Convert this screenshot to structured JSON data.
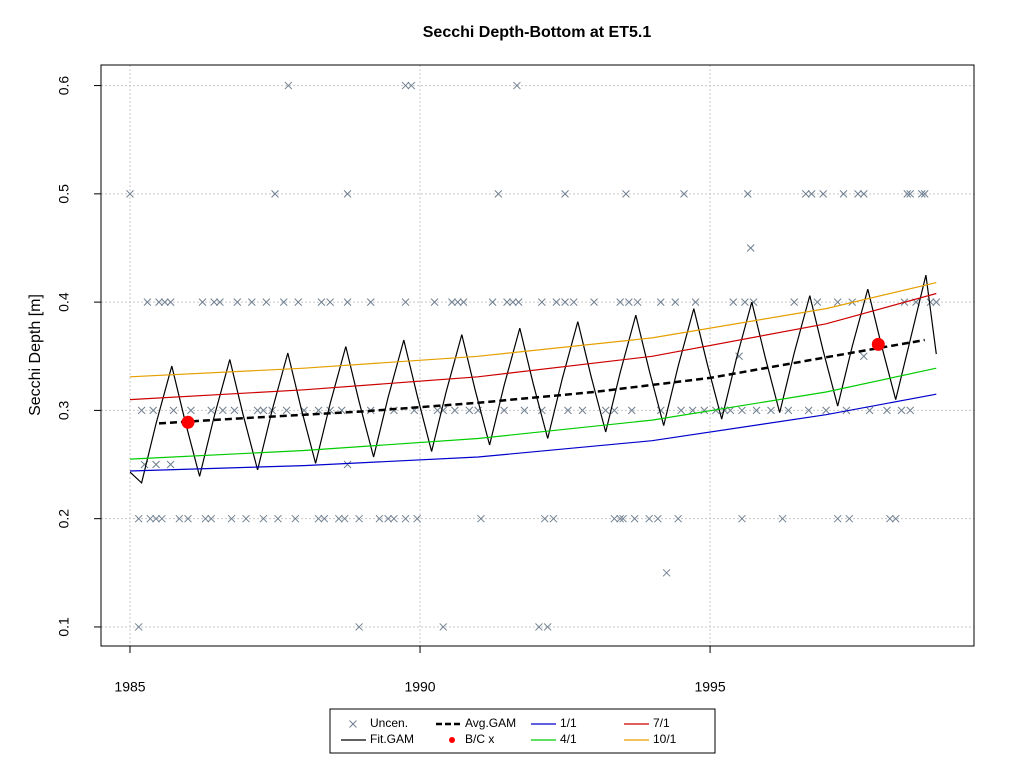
{
  "chart_data": {
    "type": "line",
    "title": "Secchi Depth-Bottom at ET5.1",
    "ylabel": "Secchi Depth [m]",
    "xlim": [
      1984.5,
      1999.55
    ],
    "ylim": [
      0.0824,
      0.619
    ],
    "xticks": [
      1985,
      1990,
      1995
    ],
    "yticks": [
      0.1,
      0.2,
      0.3,
      0.4,
      0.5,
      0.6
    ],
    "grid": true,
    "legend": "bottom",
    "series": [
      {
        "name": "Uncen.",
        "kind": "scatter",
        "color": "#708090",
        "x": [
          1987.73,
          1989.75,
          1989.85,
          1991.67,
          1985.0,
          1987.5,
          1988.75,
          1991.35,
          1992.5,
          1993.55,
          1994.55,
          1995.65,
          1996.65,
          1996.75,
          1996.95,
          1997.3,
          1997.55,
          1997.65,
          1998.4,
          1998.45,
          1998.65,
          1998.7,
          1995.7,
          1985.3,
          1985.5,
          1985.6,
          1985.7,
          1986.25,
          1986.45,
          1986.55,
          1986.85,
          1987.1,
          1987.35,
          1987.65,
          1987.9,
          1988.3,
          1988.45,
          1988.75,
          1989.15,
          1989.75,
          1990.25,
          1990.55,
          1990.65,
          1990.75,
          1991.25,
          1991.5,
          1991.6,
          1991.7,
          1992.1,
          1992.35,
          1992.5,
          1992.65,
          1993.0,
          1993.45,
          1993.6,
          1993.75,
          1994.15,
          1994.4,
          1994.75,
          1995.4,
          1995.6,
          1995.75,
          1996.45,
          1996.85,
          1997.2,
          1997.45,
          1998.35,
          1998.55,
          1998.8,
          1998.9,
          1995.5,
          1997.65,
          1985.2,
          1985.4,
          1985.75,
          1986.05,
          1986.4,
          1986.6,
          1986.8,
          1987.2,
          1987.3,
          1987.45,
          1987.7,
          1988.0,
          1988.25,
          1988.45,
          1988.65,
          1989.15,
          1989.55,
          1989.9,
          1990.3,
          1990.4,
          1990.6,
          1990.85,
          1991.0,
          1991.45,
          1991.8,
          1992.1,
          1992.55,
          1992.8,
          1993.2,
          1993.35,
          1993.65,
          1994.15,
          1994.5,
          1994.7,
          1994.9,
          1995.1,
          1995.25,
          1995.35,
          1995.55,
          1995.8,
          1996.05,
          1996.35,
          1996.7,
          1997.0,
          1997.35,
          1997.75,
          1998.05,
          1998.3,
          1998.45,
          1985.25,
          1985.45,
          1985.7,
          1988.75,
          1985.15,
          1985.35,
          1985.45,
          1985.55,
          1985.85,
          1986.0,
          1986.3,
          1986.4,
          1986.75,
          1987.0,
          1987.3,
          1987.55,
          1987.85,
          1988.25,
          1988.35,
          1988.6,
          1988.7,
          1988.95,
          1989.3,
          1989.45,
          1989.55,
          1989.75,
          1989.95,
          1991.05,
          1992.15,
          1992.3,
          1993.35,
          1993.45,
          1993.5,
          1993.7,
          1993.95,
          1994.1,
          1994.45,
          1995.55,
          1996.25,
          1997.2,
          1997.4,
          1998.1,
          1998.2,
          1994.25,
          1985.15,
          1988.95,
          1990.4,
          1992.05,
          1992.2
        ],
        "values": [
          0.6,
          0.6,
          0.6,
          0.6,
          0.5,
          0.5,
          0.5,
          0.5,
          0.5,
          0.5,
          0.5,
          0.5,
          0.5,
          0.5,
          0.5,
          0.5,
          0.5,
          0.5,
          0.5,
          0.5,
          0.5,
          0.5,
          0.45,
          0.4,
          0.4,
          0.4,
          0.4,
          0.4,
          0.4,
          0.4,
          0.4,
          0.4,
          0.4,
          0.4,
          0.4,
          0.4,
          0.4,
          0.4,
          0.4,
          0.4,
          0.4,
          0.4,
          0.4,
          0.4,
          0.4,
          0.4,
          0.4,
          0.4,
          0.4,
          0.4,
          0.4,
          0.4,
          0.4,
          0.4,
          0.4,
          0.4,
          0.4,
          0.4,
          0.4,
          0.4,
          0.4,
          0.4,
          0.4,
          0.4,
          0.4,
          0.4,
          0.4,
          0.4,
          0.4,
          0.4,
          0.35,
          0.35,
          0.3,
          0.3,
          0.3,
          0.3,
          0.3,
          0.3,
          0.3,
          0.3,
          0.3,
          0.3,
          0.3,
          0.3,
          0.3,
          0.3,
          0.3,
          0.3,
          0.3,
          0.3,
          0.3,
          0.3,
          0.3,
          0.3,
          0.3,
          0.3,
          0.3,
          0.3,
          0.3,
          0.3,
          0.3,
          0.3,
          0.3,
          0.3,
          0.3,
          0.3,
          0.3,
          0.3,
          0.3,
          0.3,
          0.3,
          0.3,
          0.3,
          0.3,
          0.3,
          0.3,
          0.3,
          0.3,
          0.3,
          0.3,
          0.3,
          0.25,
          0.25,
          0.25,
          0.25,
          0.2,
          0.2,
          0.2,
          0.2,
          0.2,
          0.2,
          0.2,
          0.2,
          0.2,
          0.2,
          0.2,
          0.2,
          0.2,
          0.2,
          0.2,
          0.2,
          0.2,
          0.2,
          0.2,
          0.2,
          0.2,
          0.2,
          0.2,
          0.2,
          0.2,
          0.2,
          0.2,
          0.2,
          0.2,
          0.2,
          0.2,
          0.2,
          0.2,
          0.2,
          0.2,
          0.2,
          0.2,
          0.2,
          0.2,
          0.15,
          0.1,
          0.1,
          0.1,
          0.1,
          0.1
        ]
      },
      {
        "name": "Fit.GAM",
        "kind": "line",
        "color": "#000000",
        "x": [
          1985.0,
          1985.2,
          1985.45,
          1985.72,
          1985.95,
          1986.2,
          1986.45,
          1986.72,
          1986.95,
          1987.2,
          1987.45,
          1987.72,
          1987.95,
          1988.2,
          1988.45,
          1988.72,
          1988.95,
          1989.2,
          1989.45,
          1989.72,
          1989.95,
          1990.2,
          1990.45,
          1990.72,
          1990.95,
          1991.2,
          1991.45,
          1991.72,
          1991.95,
          1992.2,
          1992.45,
          1992.72,
          1992.95,
          1993.2,
          1993.45,
          1993.72,
          1993.95,
          1994.2,
          1994.45,
          1994.72,
          1994.95,
          1995.2,
          1995.45,
          1995.72,
          1995.95,
          1996.2,
          1996.45,
          1996.72,
          1996.95,
          1997.2,
          1997.45,
          1997.72,
          1997.95,
          1998.2,
          1998.45,
          1998.72,
          1998.9
        ],
        "values": [
          0.243,
          0.233,
          0.288,
          0.341,
          0.29,
          0.239,
          0.294,
          0.347,
          0.296,
          0.245,
          0.3,
          0.353,
          0.302,
          0.251,
          0.306,
          0.359,
          0.308,
          0.257,
          0.312,
          0.365,
          0.314,
          0.262,
          0.317,
          0.37,
          0.319,
          0.268,
          0.323,
          0.376,
          0.325,
          0.274,
          0.329,
          0.382,
          0.331,
          0.28,
          0.335,
          0.388,
          0.337,
          0.286,
          0.341,
          0.394,
          0.343,
          0.292,
          0.347,
          0.4,
          0.349,
          0.298,
          0.353,
          0.406,
          0.355,
          0.304,
          0.359,
          0.412,
          0.361,
          0.31,
          0.365,
          0.425,
          0.352
        ]
      },
      {
        "name": "Avg.GAM",
        "kind": "dashed",
        "color": "#000000",
        "x": [
          1985.5,
          1987,
          1989,
          1991,
          1993,
          1995,
          1997,
          1998.7
        ],
        "values": [
          0.288,
          0.293,
          0.299,
          0.307,
          0.317,
          0.33,
          0.349,
          0.365
        ]
      },
      {
        "name": "B/C x",
        "kind": "points",
        "color": "#ff0000",
        "x": [
          1986.0,
          1997.9
        ],
        "values": [
          0.289,
          0.361
        ]
      },
      {
        "name": "1/1",
        "kind": "line",
        "color": "#0000cd",
        "x": [
          1985,
          1988,
          1991,
          1994,
          1997,
          1998.9
        ],
        "values": [
          0.244,
          0.249,
          0.257,
          0.272,
          0.296,
          0.315
        ]
      },
      {
        "name": "4/1",
        "kind": "line",
        "color": "#00cd00",
        "x": [
          1985,
          1988,
          1991,
          1994,
          1997,
          1998.9
        ],
        "values": [
          0.255,
          0.263,
          0.274,
          0.291,
          0.317,
          0.339
        ]
      },
      {
        "name": "7/1",
        "kind": "line",
        "color": "#cd0000",
        "x": [
          1985,
          1988,
          1991,
          1994,
          1997,
          1998.9
        ],
        "values": [
          0.31,
          0.319,
          0.331,
          0.35,
          0.38,
          0.408
        ]
      },
      {
        "name": "10/1",
        "kind": "line",
        "color": "#e69f00",
        "x": [
          1985,
          1988,
          1991,
          1994,
          1997,
          1998.9
        ],
        "values": [
          0.331,
          0.339,
          0.35,
          0.367,
          0.394,
          0.418
        ]
      }
    ]
  }
}
